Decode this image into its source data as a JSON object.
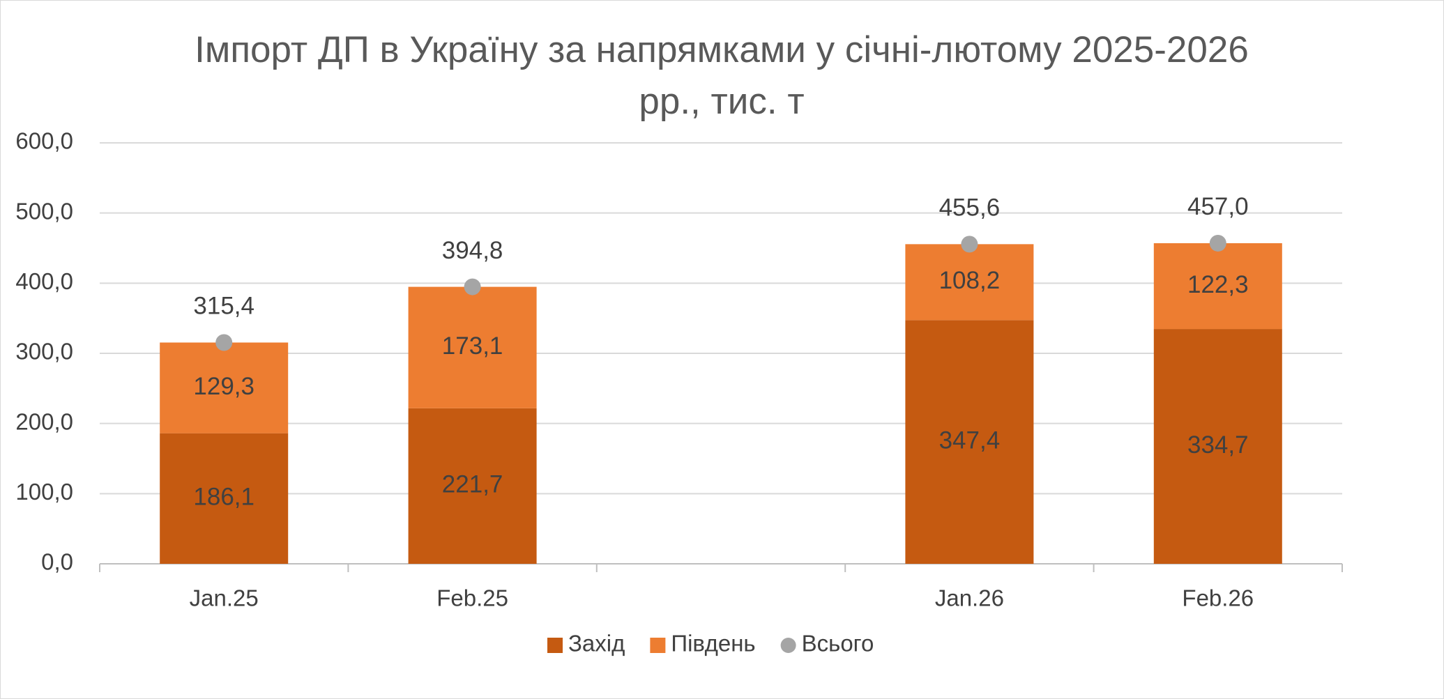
{
  "chart_data": {
    "type": "bar",
    "stacked": true,
    "title": "Імпорт ДП в Україну за напрямками у січні-лютому 2025-2026 рр., тис. т",
    "categories": [
      "Jan.25",
      "Feb.25",
      null,
      "Jan.26",
      "Feb.26"
    ],
    "series": [
      {
        "name": "Захід",
        "color": "#c55a11",
        "values": [
          186.1,
          221.7,
          null,
          347.4,
          334.7
        ],
        "value_labels": [
          "186,1",
          "221,7",
          null,
          "347,4",
          "334,7"
        ]
      },
      {
        "name": "Південь",
        "color": "#ed7d31",
        "values": [
          129.3,
          173.1,
          null,
          108.2,
          122.3
        ],
        "value_labels": [
          "129,3",
          "173,1",
          null,
          "108,2",
          "122,3"
        ]
      },
      {
        "name": "Всього",
        "type": "scatter",
        "color": "#a5a5a5",
        "values": [
          315.4,
          394.8,
          null,
          455.6,
          457.0
        ],
        "value_labels": [
          "315,4",
          "394,8",
          null,
          "455,6",
          "457,0"
        ]
      }
    ],
    "ylim": [
      0,
      600
    ],
    "yticks": [
      {
        "value": 0,
        "label": "0,0"
      },
      {
        "value": 100,
        "label": "100,0"
      },
      {
        "value": 200,
        "label": "200,0"
      },
      {
        "value": 300,
        "label": "300,0"
      },
      {
        "value": 400,
        "label": "400,0"
      },
      {
        "value": 500,
        "label": "500,0"
      },
      {
        "value": 600,
        "label": "600,0"
      }
    ],
    "grid": true,
    "legend": "bottom"
  }
}
